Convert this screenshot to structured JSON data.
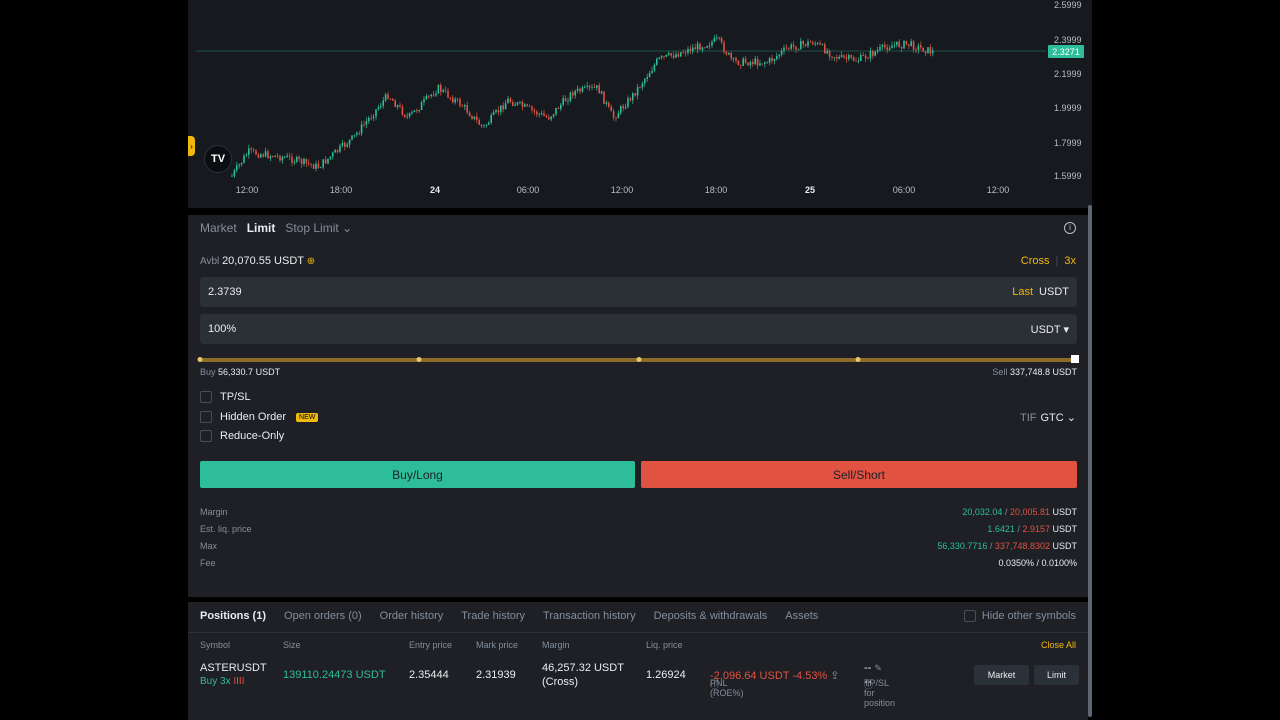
{
  "chart": {
    "price_ticks": [
      "2.5999",
      "2.3999",
      "2.1999",
      "1.9999",
      "1.7999",
      "1.5999"
    ],
    "current_price_tag": "2.3271",
    "time_ticks": [
      "12:00",
      "18:00",
      "24",
      "06:00",
      "12:00",
      "18:00",
      "25",
      "06:00",
      "12:00"
    ],
    "logo_text": "TV",
    "colors": {
      "up": "#2ebd9a",
      "down": "#e15241"
    }
  },
  "order": {
    "tabs": [
      "Market",
      "Limit",
      "Stop Limit"
    ],
    "active_tab": "Limit",
    "avbl_label": "Avbl",
    "avbl_value": "20,070.55 USDT",
    "margin_mode": "Cross",
    "leverage": "3x",
    "price_value": "2.3739",
    "price_suffix_last": "Last",
    "price_suffix_unit": "USDT",
    "size_value": "100%",
    "size_unit": "USDT",
    "buy_label": "Buy",
    "buy_amount": "56,330.7 USDT",
    "sell_label": "Sell",
    "sell_amount": "337,748.8 USDT",
    "tpsl_label": "TP/SL",
    "hidden_order_label": "Hidden Order",
    "new_badge": "NEW",
    "reduce_only_label": "Reduce-Only",
    "tif_label": "TIF",
    "tif_value": "GTC",
    "buy_button": "Buy/Long",
    "sell_button": "Sell/Short",
    "stats": {
      "margin_label": "Margin",
      "margin_buy": "20,032.04",
      "margin_sell": "20,005.81",
      "liq_label": "Est. liq. price",
      "liq_buy": "1.6421",
      "liq_sell": "2.9157",
      "max_label": "Max",
      "max_buy": "56,330.7716",
      "max_sell": "337,748.8302",
      "fee_label": "Fee",
      "fee_value": "0.0350% / 0.0100%",
      "unit": "USDT",
      "slash": "/"
    }
  },
  "positions": {
    "tabs": [
      "Positions (1)",
      "Open orders (0)",
      "Order history",
      "Trade history",
      "Transaction history",
      "Deposits & withdrawals",
      "Assets"
    ],
    "hide_other_label": "Hide other symbols",
    "headers": [
      "Symbol",
      "Size",
      "Entry price",
      "Mark price",
      "Margin",
      "Liq. price",
      "PNL (ROE%)",
      "TP/SL for position"
    ],
    "close_all": "Close All",
    "row": {
      "symbol": "ASTERUSDT",
      "side": "Buy 3x",
      "size": "139110.24473 USDT",
      "entry": "2.35444",
      "mark": "2.31939",
      "margin": "46,257.32 USDT",
      "margin_mode": "(Cross)",
      "liq": "1.26924",
      "pnl": "-2,096.64 USDT",
      "roe": "-4.53%",
      "tp": "--",
      "sl": "--",
      "market_btn": "Market",
      "limit_btn": "Limit"
    }
  }
}
